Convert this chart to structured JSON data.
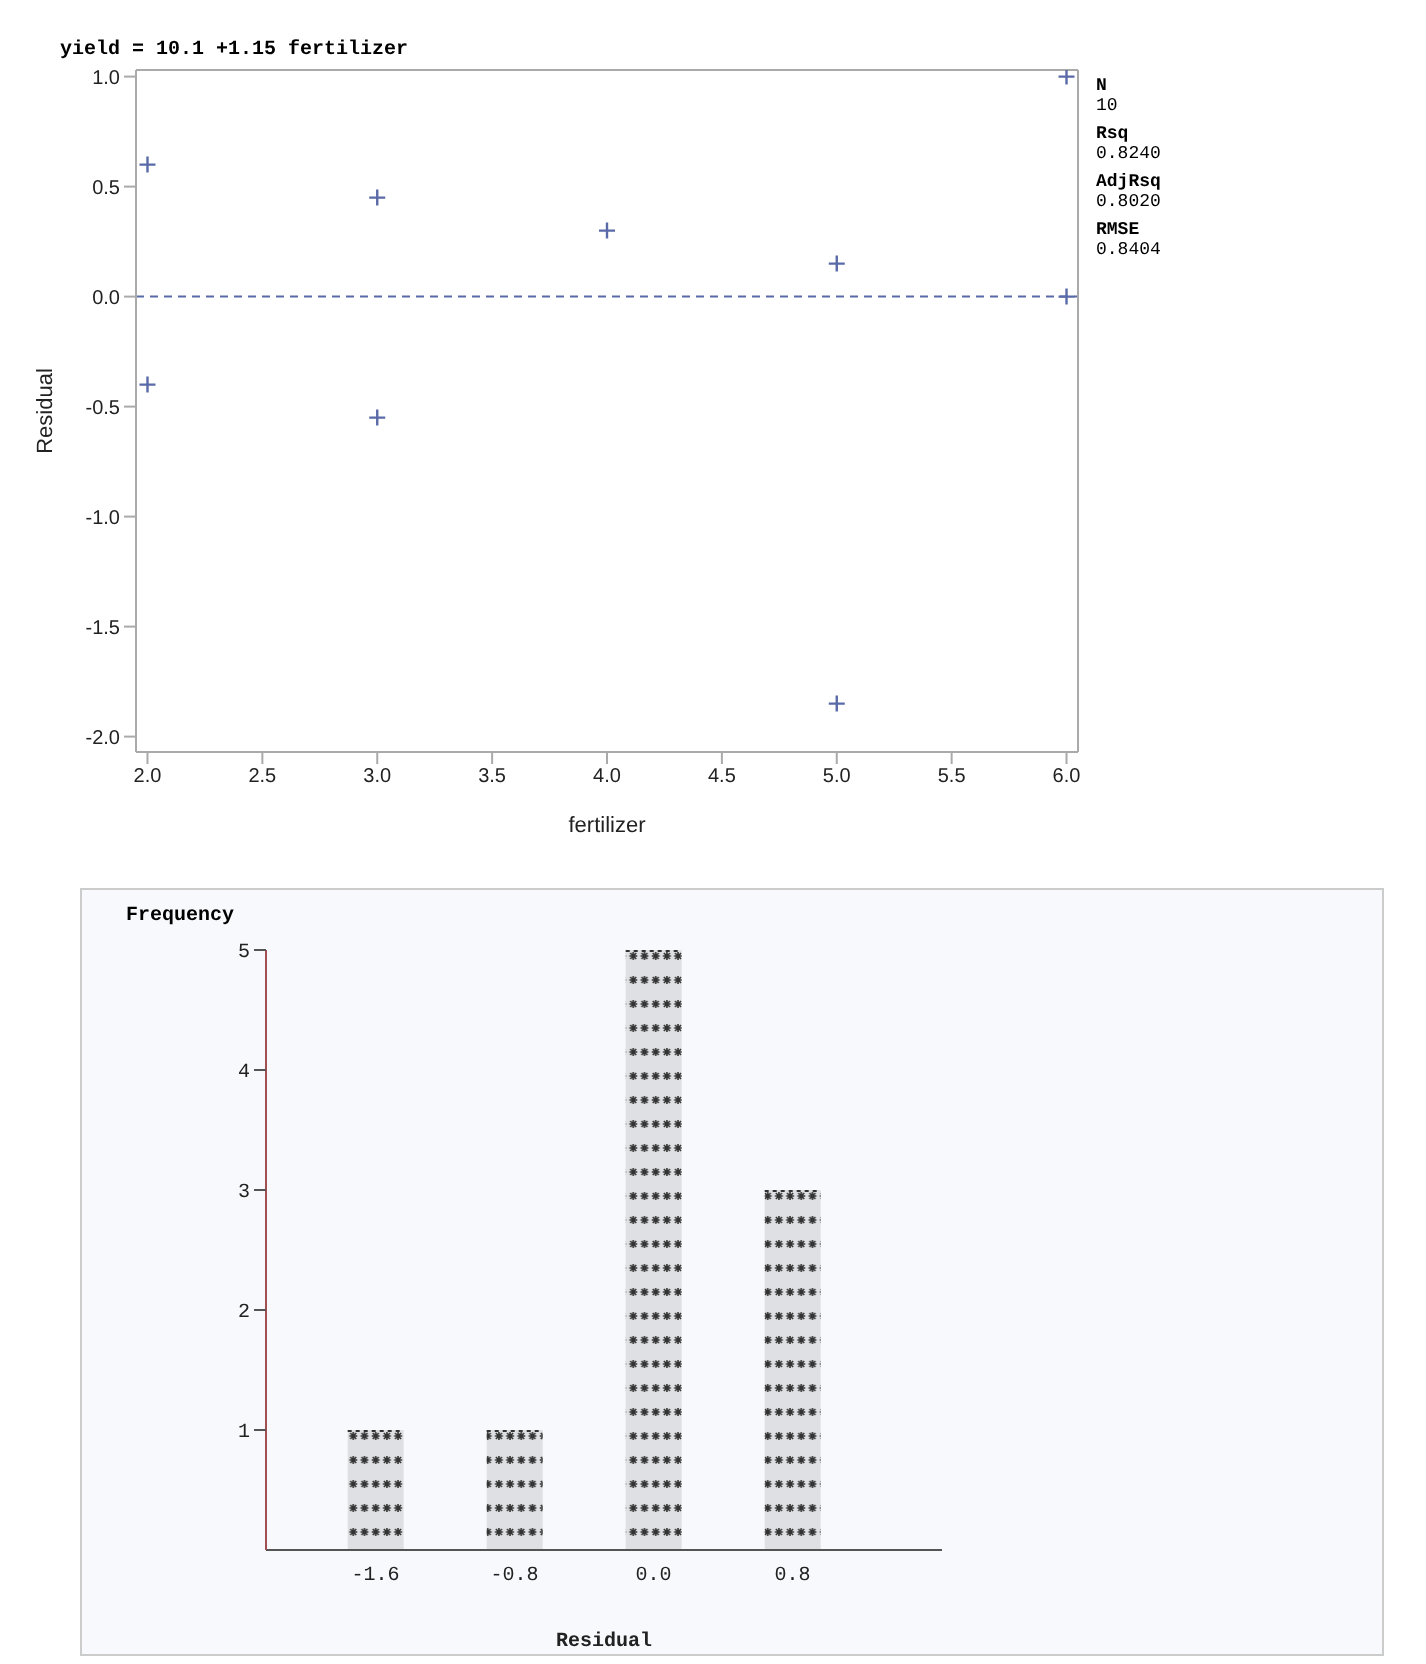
{
  "chart_data": [
    {
      "type": "scatter",
      "title": "yield = 10.1 +1.15 fertilizer",
      "xlabel": "fertilizer",
      "ylabel": "Residual",
      "x": [
        2,
        2,
        3,
        3,
        4,
        5,
        5,
        6,
        6
      ],
      "series": [
        {
          "color": "#5a6aa8",
          "values": [
            0.6,
            -0.4,
            0.45,
            -0.55,
            0.3,
            0.15,
            -1.85,
            1.0,
            0.0
          ]
        }
      ],
      "xlim": [
        1.95,
        6.05
      ],
      "ylim": [
        -2.07,
        1.03
      ],
      "xticks": [
        {
          "value": 2,
          "label": "2.0"
        },
        {
          "value": 2.5,
          "label": "2.5"
        },
        {
          "value": 3,
          "label": "3.0"
        },
        {
          "value": 3.5,
          "label": "3.5"
        },
        {
          "value": 4,
          "label": "4.0"
        },
        {
          "value": 4.5,
          "label": "4.5"
        },
        {
          "value": 5,
          "label": "5.0"
        },
        {
          "value": 5.5,
          "label": "5.5"
        },
        {
          "value": 6,
          "label": "6.0"
        }
      ],
      "yticks": [
        {
          "value": -2,
          "label": "-2.0"
        },
        {
          "value": -1.5,
          "label": "-1.5"
        },
        {
          "value": -1,
          "label": "-1.0"
        },
        {
          "value": -0.5,
          "label": "-0.5"
        },
        {
          "value": 0,
          "label": "0.0"
        },
        {
          "value": 0.5,
          "label": "0.5"
        },
        {
          "value": 1,
          "label": "1.0"
        }
      ],
      "ref_lines": [
        {
          "axis": "y",
          "value": 0,
          "color": "#5a6aa8",
          "line_style": "dashed"
        }
      ],
      "annotations": [
        "N",
        "10",
        "Rsq",
        "0.8240",
        "AdjRsq",
        "0.8020",
        "RMSE",
        "0.8404"
      ],
      "marker": "cross"
    },
    {
      "type": "bar",
      "xlabel": "Residual",
      "ylabel": "Frequency",
      "categories": [
        "-1.6",
        "-0.8",
        "0.0",
        "0.8"
      ],
      "values": [
        1,
        1,
        5,
        3
      ],
      "color": "#333333",
      "ylim": [
        0,
        5
      ],
      "yticks": [
        1,
        2,
        3,
        4,
        5
      ]
    }
  ]
}
